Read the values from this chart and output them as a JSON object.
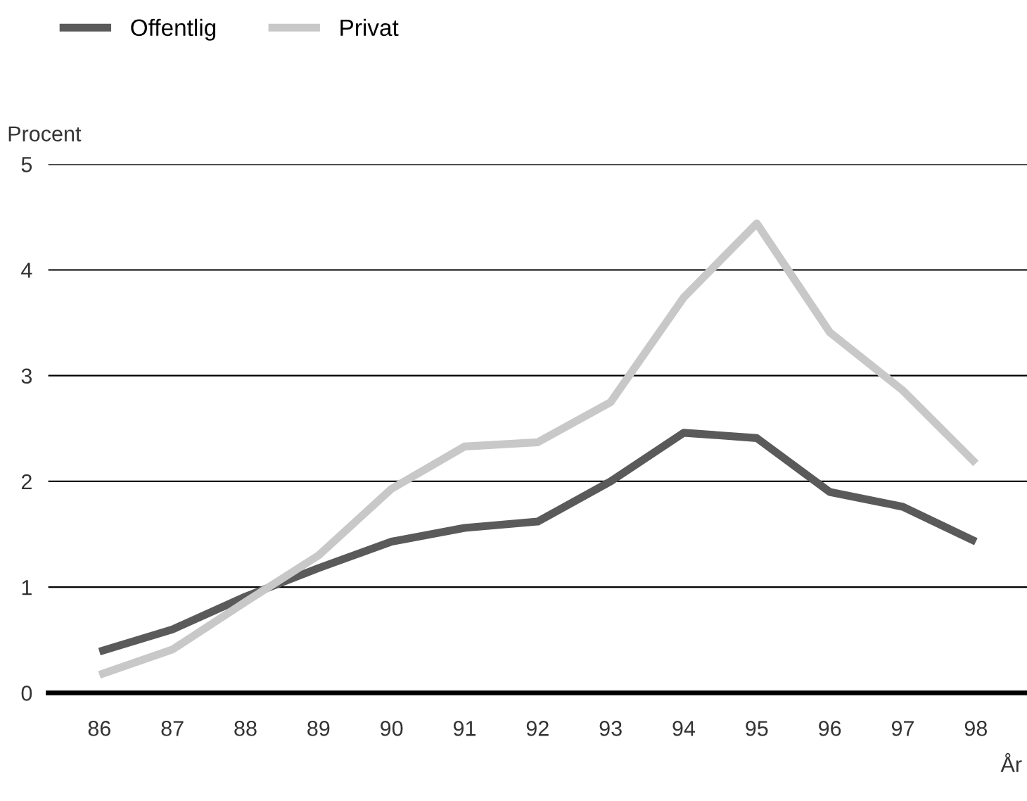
{
  "chart_data": {
    "type": "line",
    "ylabel": "Procent",
    "xlabel": "År",
    "categories": [
      "86",
      "87",
      "88",
      "89",
      "90",
      "91",
      "92",
      "93",
      "94",
      "95",
      "96",
      "97",
      "98"
    ],
    "series": [
      {
        "name": "Offentlig",
        "color": "#5a5a5a",
        "values": [
          0.39,
          0.6,
          0.91,
          1.18,
          1.43,
          1.56,
          1.62,
          2.0,
          2.46,
          2.41,
          1.9,
          1.76,
          1.43
        ]
      },
      {
        "name": "Privat",
        "color": "#c8c8c8",
        "values": [
          0.17,
          0.41,
          0.86,
          1.3,
          1.93,
          2.33,
          2.37,
          2.75,
          3.74,
          4.44,
          3.41,
          2.86,
          2.17
        ]
      }
    ],
    "ylim": [
      0,
      5
    ],
    "yticks": [
      0,
      1,
      2,
      3,
      4,
      5
    ],
    "grid": "y",
    "legend": "top left",
    "marker": "none",
    "line_style": "solid"
  }
}
